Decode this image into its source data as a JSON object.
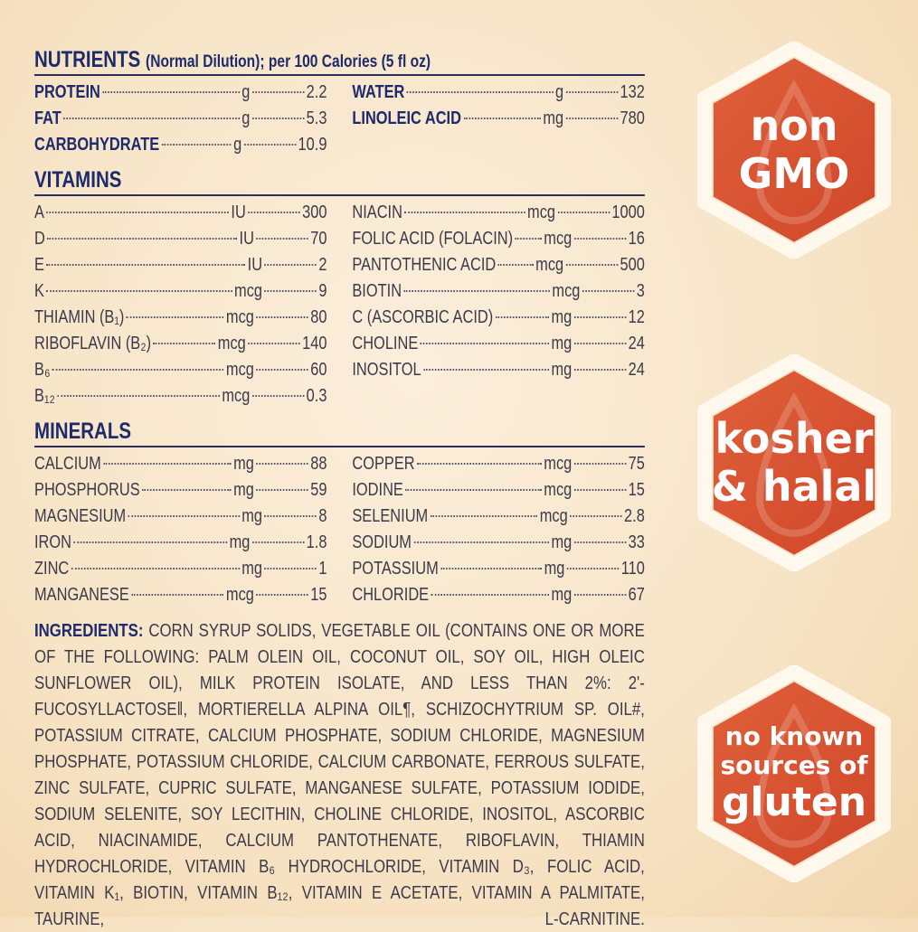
{
  "nutrients": {
    "title": "NUTRIENTS",
    "subtitle": "(Normal Dilution); per 100 Calories (5 fl oz)",
    "left": [
      {
        "label": "PROTEIN",
        "unit": "g",
        "value": "2.2"
      },
      {
        "label": "FAT",
        "unit": "g",
        "value": "5.3"
      },
      {
        "label": "CARBOHYDRATE",
        "unit": "g",
        "value": "10.9"
      }
    ],
    "right": [
      {
        "label": "WATER",
        "unit": "g",
        "value": "132"
      },
      {
        "label": "LINOLEIC ACID",
        "unit": "mg",
        "value": "780"
      }
    ]
  },
  "vitamins": {
    "title": "VITAMINS",
    "left": [
      {
        "label": "A",
        "unit": "IU",
        "value": "300"
      },
      {
        "label": "D",
        "unit": "IU",
        "value": "70"
      },
      {
        "label": "E",
        "unit": "IU",
        "value": "2"
      },
      {
        "label": "K",
        "unit": "mcg",
        "value": "9"
      },
      {
        "label": "THIAMIN (B₁)",
        "unit": "mcg",
        "value": "80"
      },
      {
        "label": "RIBOFLAVIN (B₂)",
        "unit": "mcg",
        "value": "140"
      },
      {
        "label": "B₆",
        "unit": "mcg",
        "value": "60"
      },
      {
        "label": "B₁₂",
        "unit": "mcg",
        "value": "0.3"
      }
    ],
    "right": [
      {
        "label": "NIACIN",
        "unit": "mcg",
        "value": "1000"
      },
      {
        "label": "FOLIC ACID (FOLACIN)",
        "unit": "mcg",
        "value": "16"
      },
      {
        "label": "PANTOTHENIC ACID",
        "unit": "mcg",
        "value": "500"
      },
      {
        "label": "BIOTIN",
        "unit": "mcg",
        "value": "3"
      },
      {
        "label": "C (ASCORBIC ACID)",
        "unit": "mg",
        "value": "12"
      },
      {
        "label": "CHOLINE",
        "unit": "mg",
        "value": "24"
      },
      {
        "label": "INOSITOL",
        "unit": "mg",
        "value": "24"
      }
    ]
  },
  "minerals": {
    "title": "MINERALS",
    "left": [
      {
        "label": "CALCIUM",
        "unit": "mg",
        "value": "88"
      },
      {
        "label": "PHOSPHORUS",
        "unit": "mg",
        "value": "59"
      },
      {
        "label": "MAGNESIUM",
        "unit": "mg",
        "value": "8"
      },
      {
        "label": "IRON",
        "unit": "mg",
        "value": "1.8"
      },
      {
        "label": "ZINC",
        "unit": "mg",
        "value": "1"
      },
      {
        "label": "MANGANESE",
        "unit": "mcg",
        "value": "15"
      }
    ],
    "right": [
      {
        "label": "COPPER",
        "unit": "mcg",
        "value": "75"
      },
      {
        "label": "IODINE",
        "unit": "mcg",
        "value": "15"
      },
      {
        "label": "SELENIUM",
        "unit": "mcg",
        "value": "2.8"
      },
      {
        "label": "SODIUM",
        "unit": "mg",
        "value": "33"
      },
      {
        "label": "POTASSIUM",
        "unit": "mg",
        "value": "110"
      },
      {
        "label": "CHLORIDE",
        "unit": "mg",
        "value": "67"
      }
    ]
  },
  "ingredients": {
    "label": "INGREDIENTS:",
    "text": " CORN SYRUP SOLIDS, VEGETABLE OIL (CONTAINS ONE OR MORE OF THE FOLLOWING: PALM OLEIN OIL, COCONUT OIL, SOY OIL, HIGH OLEIC SUNFLOWER OIL), MILK PROTEIN ISOLATE, AND LESS THAN 2%: 2'-FUCOSYLLACTOSE‖, MORTIERELLA ALPINA OIL¶, SCHIZOCHYTRIUM SP. OIL#, POTASSIUM CITRATE, CALCIUM PHOSPHATE, SODIUM CHLORIDE, MAGNESIUM PHOSPHATE, POTASSIUM CHLORIDE, CALCIUM CARBONATE, FERROUS SULFATE, ZINC SULFATE, CUPRIC SULFATE, MANGANESE SULFATE, POTASSIUM IODIDE, SODIUM SELENITE, SOY LECITHIN, CHOLINE CHLORIDE, INOSITOL, ASCORBIC ACID, NIACINAMIDE, CALCIUM PANTOTHENATE, RIBOFLAVIN, THIAMIN HYDROCHLORIDE, VITAMIN B₆ HYDROCHLORIDE, VITAMIN D₃, FOLIC ACID, VITAMIN K₁, BIOTIN, VITAMIN B₁₂, VITAMIN E ACETATE, VITAMIN A PALMITATE, TAURINE, L-CARNITINE."
  },
  "badges": [
    {
      "lines": [
        "non",
        "GMO"
      ],
      "icon": "oil-drop-icon"
    },
    {
      "lines": [
        "kosher",
        "& halal"
      ],
      "icon": "utensils-icon"
    },
    {
      "lines": [
        "no known",
        "sources of",
        "gluten"
      ],
      "icon": "wheat-icon"
    }
  ],
  "colors": {
    "heading": "#1d2a6b",
    "badge": "#d9532e",
    "background": "#f7e4c6"
  }
}
